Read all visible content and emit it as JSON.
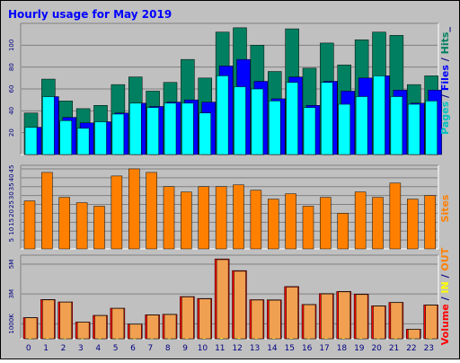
{
  "title": "Hourly usage for May 2019",
  "chart_data": [
    {
      "type": "bar",
      "panel": "hits-files-pages",
      "categories": [
        "0",
        "1",
        "2",
        "3",
        "4",
        "5",
        "6",
        "7",
        "8",
        "9",
        "10",
        "11",
        "12",
        "13",
        "14",
        "15",
        "16",
        "17",
        "18",
        "19",
        "20",
        "21",
        "22",
        "23"
      ],
      "series": [
        {
          "name": "Hits",
          "color": "#008060",
          "values": [
            38,
            69,
            49,
            42,
            45,
            64,
            71,
            58,
            66,
            87,
            70,
            112,
            116,
            100,
            76,
            115,
            79,
            102,
            82,
            105,
            112,
            109,
            64,
            72
          ]
        },
        {
          "name": "Files",
          "color": "#0000ff",
          "values": [
            25,
            53,
            34,
            29,
            30,
            38,
            47,
            44,
            48,
            50,
            48,
            81,
            87,
            67,
            51,
            71,
            45,
            67,
            58,
            70,
            72,
            59,
            47,
            59
          ]
        },
        {
          "name": "Pages",
          "color": "#00ffff",
          "values": [
            25,
            53,
            31,
            24,
            30,
            37,
            47,
            43,
            47,
            47,
            38,
            72,
            62,
            60,
            49,
            66,
            43,
            66,
            46,
            53,
            72,
            53,
            46,
            49
          ]
        }
      ],
      "yticks": [
        20,
        40,
        60,
        80,
        100
      ],
      "ylim": [
        0,
        120
      ],
      "ylabel": {
        "parts": [
          {
            "text": "Pages",
            "color": "#00c0c0"
          },
          {
            "text": " / ",
            "color": "#000080"
          },
          {
            "text": "Files",
            "color": "#0000ff"
          },
          {
            "text": " / ",
            "color": "#000080"
          },
          {
            "text": "Hits",
            "color": "#008060"
          },
          {
            "text": "_",
            "color": "#000080"
          }
        ]
      }
    },
    {
      "type": "bar",
      "panel": "sites",
      "categories": [
        "0",
        "1",
        "2",
        "3",
        "4",
        "5",
        "6",
        "7",
        "8",
        "9",
        "10",
        "11",
        "12",
        "13",
        "14",
        "15",
        "16",
        "17",
        "18",
        "19",
        "20",
        "21",
        "22",
        "23"
      ],
      "series": [
        {
          "name": "Sites",
          "color": "#ff8000",
          "values": [
            27,
            43,
            29,
            26,
            24,
            41,
            45,
            43,
            35,
            32,
            35,
            35,
            36,
            33,
            28,
            31,
            24,
            29,
            20,
            32,
            29,
            37,
            28,
            30
          ]
        }
      ],
      "yticks": [
        5,
        10,
        15,
        20,
        25,
        30,
        35,
        40,
        45
      ],
      "ylim": [
        0,
        47
      ],
      "ylabel": {
        "parts": [
          {
            "text": "Sites",
            "color": "#ff8000"
          }
        ]
      }
    },
    {
      "type": "bar",
      "panel": "volume",
      "categories": [
        "0",
        "1",
        "2",
        "3",
        "4",
        "5",
        "6",
        "7",
        "8",
        "9",
        "10",
        "11",
        "12",
        "13",
        "14",
        "15",
        "16",
        "17",
        "18",
        "19",
        "20",
        "21",
        "22",
        "23"
      ],
      "series": [
        {
          "name": "Volume",
          "color": "#ff0000",
          "values": [
            1.42,
            2.63,
            2.47,
            1.12,
            1.57,
            2.05,
            0.98,
            1.61,
            1.64,
            2.83,
            2.7,
            5.35,
            4.57,
            2.62,
            2.61,
            3.5,
            2.3,
            3.03,
            3.17,
            2.99,
            2.21,
            2.44,
            0.64,
            2.27
          ]
        },
        {
          "name": "IN",
          "color": "#ffff00",
          "values": [
            0.02,
            0.03,
            0.02,
            0.01,
            0.02,
            0.02,
            0.01,
            0.02,
            0.02,
            0.03,
            0.03,
            0.05,
            0.05,
            0.03,
            0.03,
            0.04,
            0.02,
            0.03,
            0.03,
            0.03,
            0.02,
            0.02,
            0.01,
            0.02
          ]
        },
        {
          "name": "OUT",
          "color": "#ff8000",
          "values": [
            1.4,
            2.6,
            2.45,
            1.11,
            1.55,
            2.03,
            0.97,
            1.59,
            1.62,
            2.8,
            2.67,
            5.3,
            4.52,
            2.59,
            2.58,
            3.46,
            2.28,
            3.0,
            3.14,
            2.96,
            2.19,
            2.42,
            0.63,
            2.25
          ]
        }
      ],
      "yticks": [
        1,
        3,
        5
      ],
      "ytick_labels": [
        "1000K",
        "3M",
        "5M"
      ],
      "ylim": [
        0,
        5.6
      ],
      "ylabel": {
        "parts": [
          {
            "text": "Volume",
            "color": "#ff0000"
          },
          {
            "text": " / ",
            "color": "#000080"
          },
          {
            "text": "IN",
            "color": "#ffff00"
          },
          {
            "text": " / ",
            "color": "#000080"
          },
          {
            "text": "OUT",
            "color": "#ff8000"
          }
        ]
      }
    }
  ]
}
